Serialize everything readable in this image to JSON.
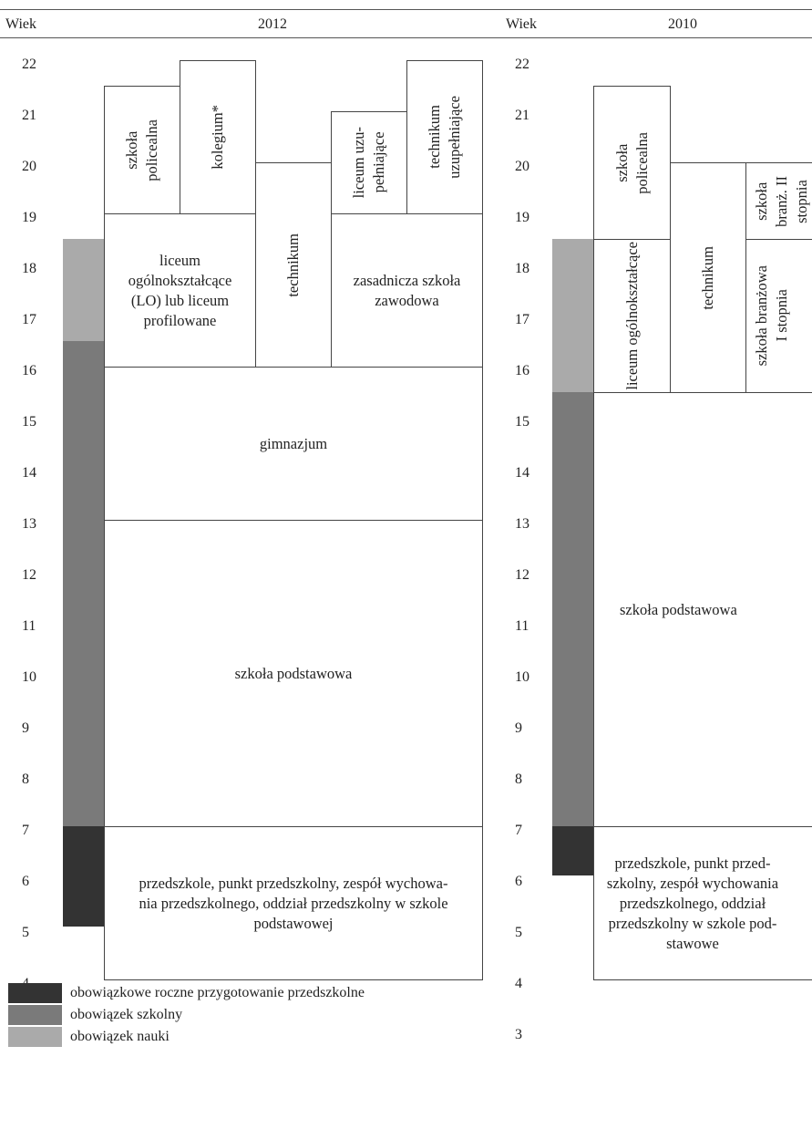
{
  "header": {
    "left_age_label": "Wiek",
    "left_year": "2012",
    "right_age_label": "Wiek",
    "right_year": "2010"
  },
  "ages": [
    "22",
    "21",
    "20",
    "19",
    "18",
    "17",
    "16",
    "15",
    "14",
    "13",
    "12",
    "11",
    "10",
    "9",
    "8",
    "7",
    "6",
    "5",
    "4",
    "3"
  ],
  "colors": {
    "dark": "#333333",
    "mid": "#7a7a7a",
    "light": "#aaaaaa",
    "border": "#444444"
  },
  "left_diagram": {
    "boxes": {
      "szkola_policealna": "szkoła\npolicealna",
      "kolegium": "kolegium*",
      "liceum_uzupelniajace": "liceum uzu-\npełniające",
      "technikum_uzupelniajace": "technikum\nuzupełniające",
      "liceum": "liceum\nogólnokształcące\n(LO) lub liceum\nprofilowane",
      "technikum": "technikum",
      "zasadnicza": "zasadnicza szkoła\nzawodowa",
      "gimnazjum": "gimnazjum",
      "szkola_podstawowa": "szkoła podstawowa",
      "przedszkole": "przedszkole, punkt przedszkolny, zespół wychowa-\nnia przedszkolnego, oddział przedszkolny w szkole\npodstawowej"
    }
  },
  "right_diagram": {
    "boxes": {
      "szkola_policealna": "szkoła\npolicealna",
      "szkola_branzowa_2": "szkoła\nbranż. II\nstopnia",
      "liceum": "liceum ogólnokształcące",
      "technikum": "technikum",
      "szkola_branzowa_1": "szkoła branżowa\nI stopnia",
      "szkola_podstawowa": "szkoła podstawowa",
      "przedszkole": "przedszkole, punkt przed-\nszkolny, zespół wychowania\nprzedszkolnego, oddział\nprzedszkolny w szkole pod-\nstawowe"
    }
  },
  "legend": [
    {
      "label": "obowiązkowe roczne przygotowanie przedszkolne",
      "color": "#333333"
    },
    {
      "label": "obowiązek szkolny",
      "color": "#7a7a7a"
    },
    {
      "label": "obowiązek nauki",
      "color": "#aaaaaa"
    }
  ]
}
